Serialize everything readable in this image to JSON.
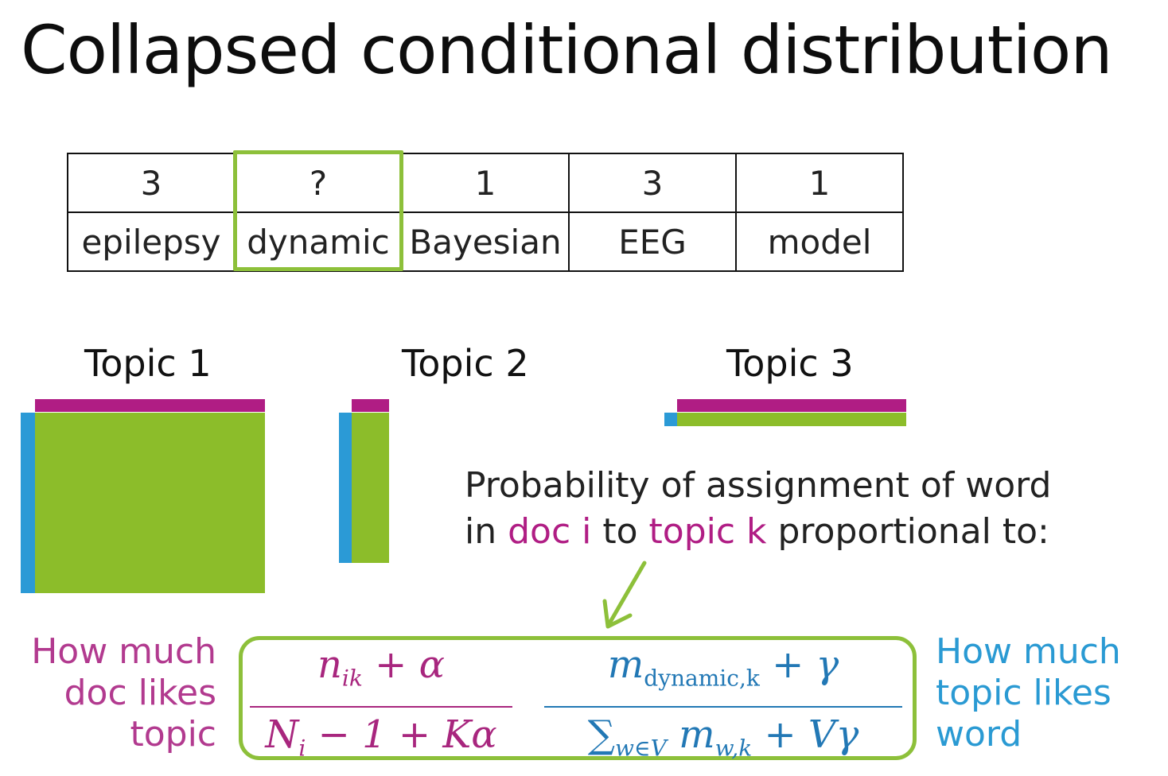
{
  "title": "Collapsed conditional distribution",
  "assignments": [
    "3",
    "?",
    "1",
    "3",
    "1"
  ],
  "words": [
    "epilepsy",
    "dynamic",
    "Bayesian",
    "EEG",
    "model"
  ],
  "topics": [
    "Topic 1",
    "Topic 2",
    "Topic 3"
  ],
  "probability_text": {
    "line1": "Probability of assignment of word",
    "line2_prefix": "in ",
    "line2_doc": "doc i",
    "line2_mid": " to ",
    "line2_topic": "topic k",
    "line2_suffix": " proportional to:"
  },
  "left_label": [
    "How much",
    "doc likes",
    "topic"
  ],
  "right_label": [
    "How much",
    "topic likes",
    "word"
  ],
  "formula": {
    "frac1_num_var": "n",
    "frac1_num_sub": "ik",
    "frac1_num_rest": " + α",
    "frac1_den_var": "N",
    "frac1_den_sub": "i",
    "frac1_den_rest": " − 1 + Kα",
    "frac2_num_var": "m",
    "frac2_num_sub": "dynamic,k",
    "frac2_num_rest": " + γ",
    "frac2_den_sum": "∑",
    "frac2_den_sum_sub": "w∈V",
    "frac2_den_var": " m",
    "frac2_den_sub": "w,k",
    "frac2_den_rest": " + Vγ"
  },
  "colors": {
    "doc_color": "#b01d84",
    "topic_color": "#2b9ad6",
    "highlight": "#8dc03a",
    "bar_green": "#8cbd2a"
  }
}
